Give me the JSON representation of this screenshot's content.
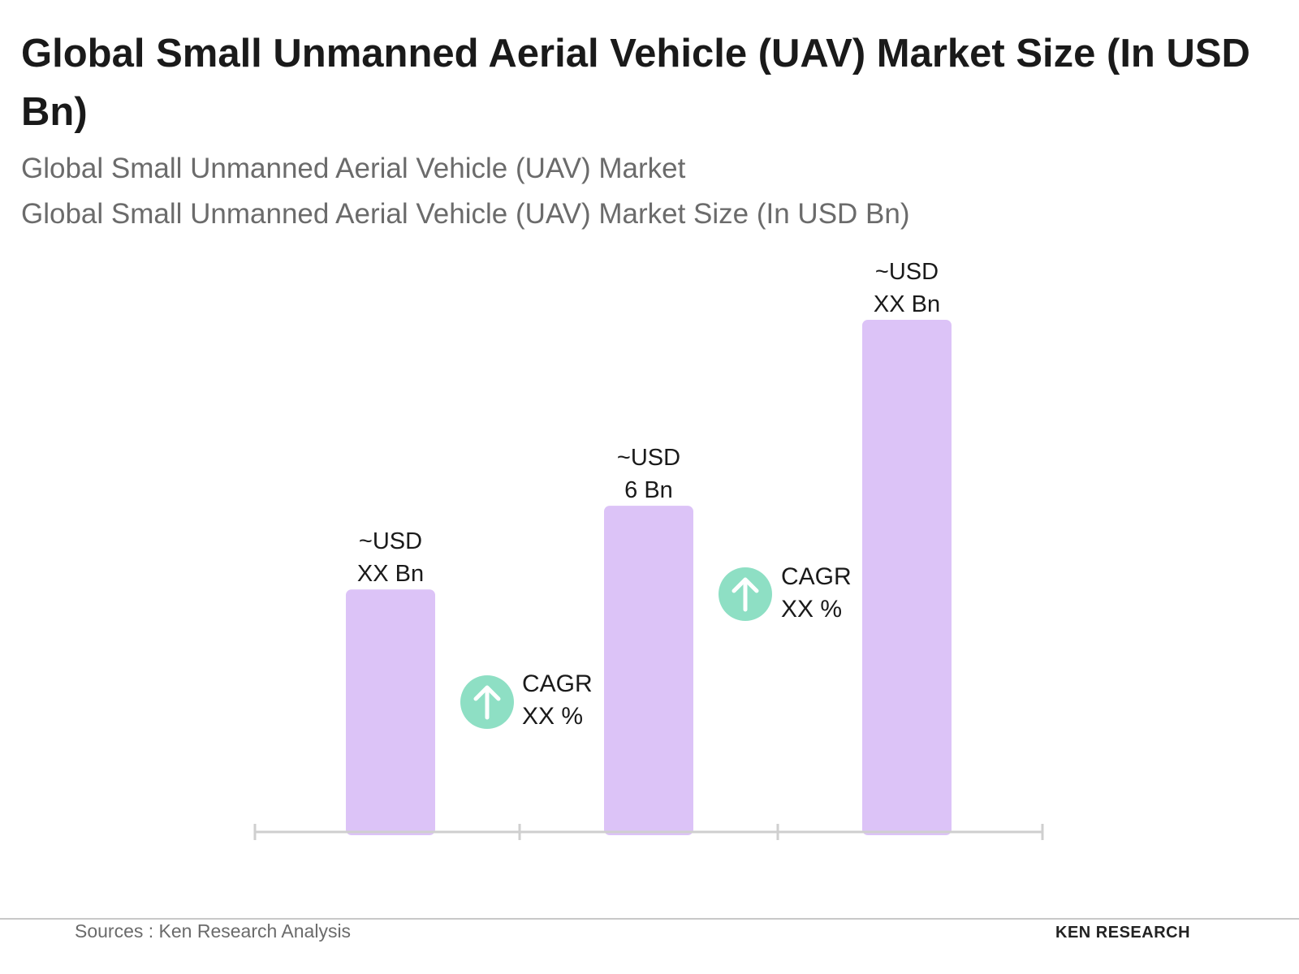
{
  "chart_data": {
    "type": "bar",
    "title": "Global Small Unmanned Aerial Vehicle (UAV) Market Size (In USD Bn)",
    "subtitles": [
      "Global Small Unmanned Aerial Vehicle (UAV) Market",
      "Global Small Unmanned Aerial Vehicle (UAV) Market Size (In USD Bn)"
    ],
    "categories": [
      null,
      null,
      null
    ],
    "values": [
      4.46,
      6,
      9.42
    ],
    "value_labels": [
      [
        "~USD",
        "XX Bn"
      ],
      [
        "~USD",
        "6 Bn"
      ],
      [
        "~USD",
        "XX Bn"
      ]
    ],
    "color": "#dcc3f7",
    "annotations": [
      [
        "CAGR",
        "XX %"
      ],
      [
        "CAGR",
        "XX %"
      ]
    ],
    "source": "Sources : Ken Research Analysis",
    "logo": "KEN RESEARCH"
  }
}
